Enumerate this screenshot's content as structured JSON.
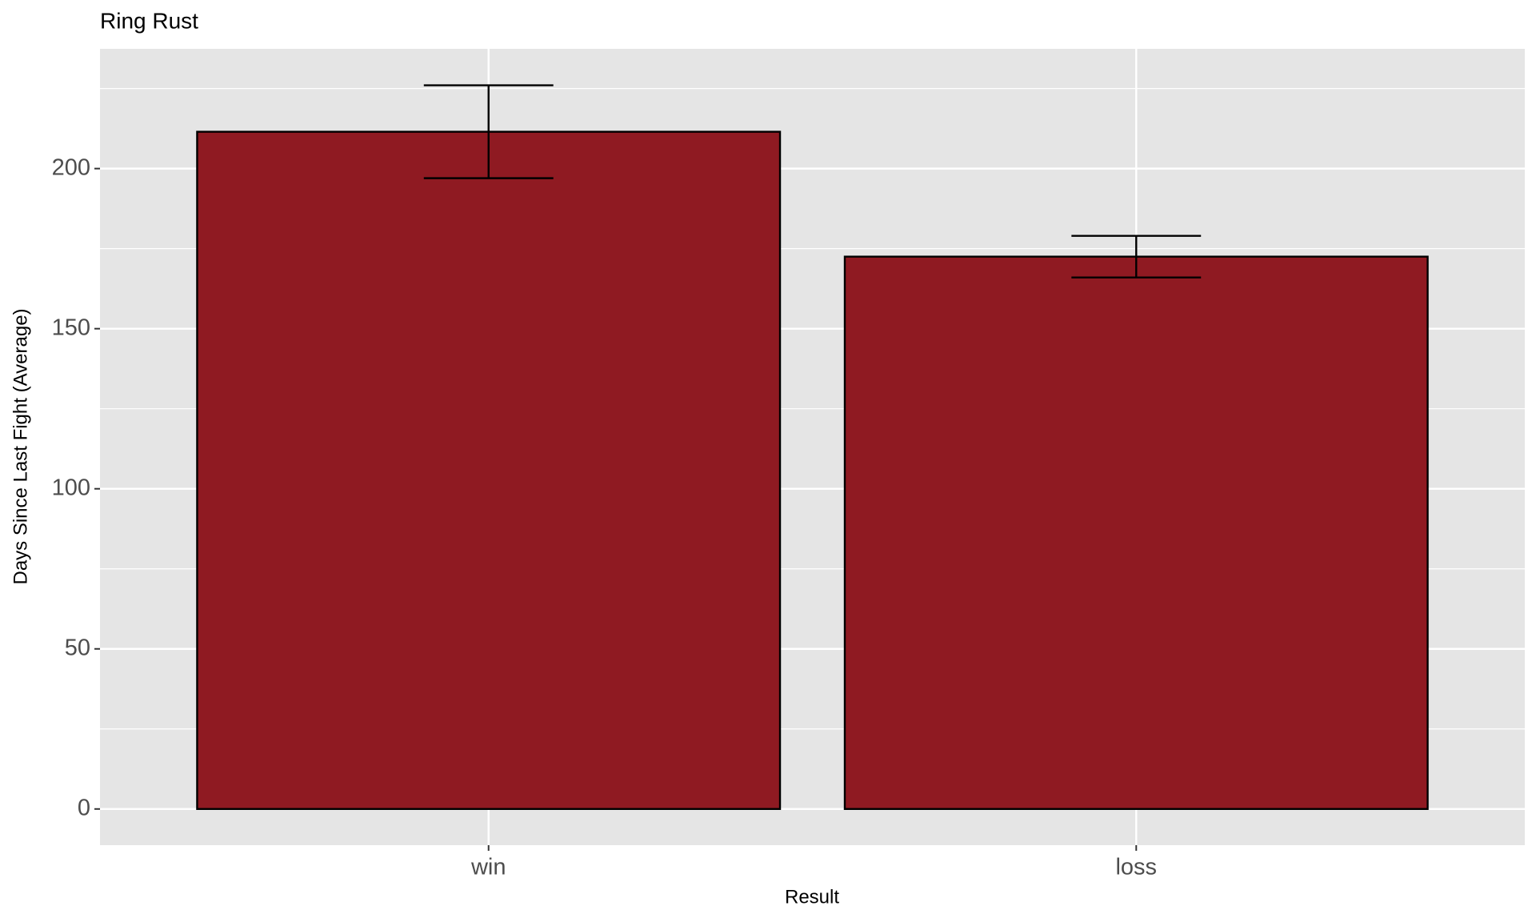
{
  "chart_data": {
    "type": "bar",
    "title": "Ring Rust",
    "x_label": "Result",
    "y_label": "Days Since Last Fight (Average)",
    "categories": [
      "win",
      "loss"
    ],
    "values": [
      211.5,
      172.5
    ],
    "errors": [
      14.5,
      6.5
    ],
    "color": "#8f1a22",
    "edge_color": "#000000",
    "ylim": [
      -11.3,
      237.4
    ],
    "yticks": [
      0,
      50,
      100,
      150,
      200
    ],
    "minor_yticks": [
      25,
      75,
      125,
      175,
      225
    ],
    "grid": true
  }
}
